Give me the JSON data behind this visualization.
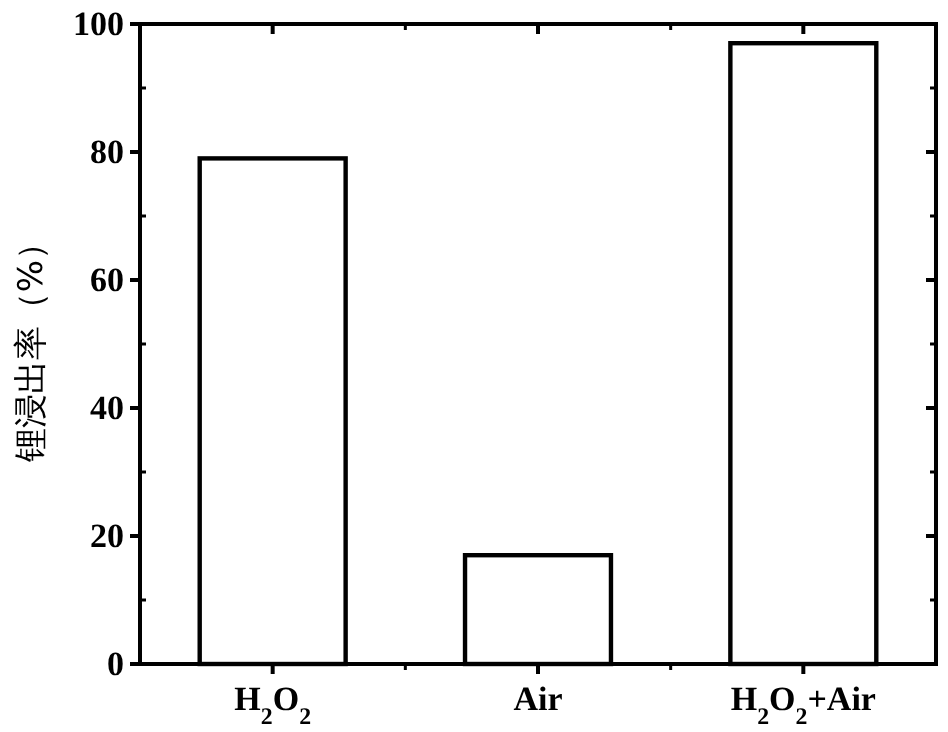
{
  "chart_data": {
    "type": "bar",
    "ylabel": "锂浸出率（%）",
    "categories": [
      "H$_{2}$O$_{2}$",
      "Air",
      "H$_{2}$O$_{2}$+Air"
    ],
    "values": [
      79,
      17,
      97
    ],
    "color": "#ffffff",
    "ylim": [
      0,
      100
    ],
    "yticks": [
      0,
      20,
      40,
      60,
      80,
      100
    ],
    "grid": false
  }
}
